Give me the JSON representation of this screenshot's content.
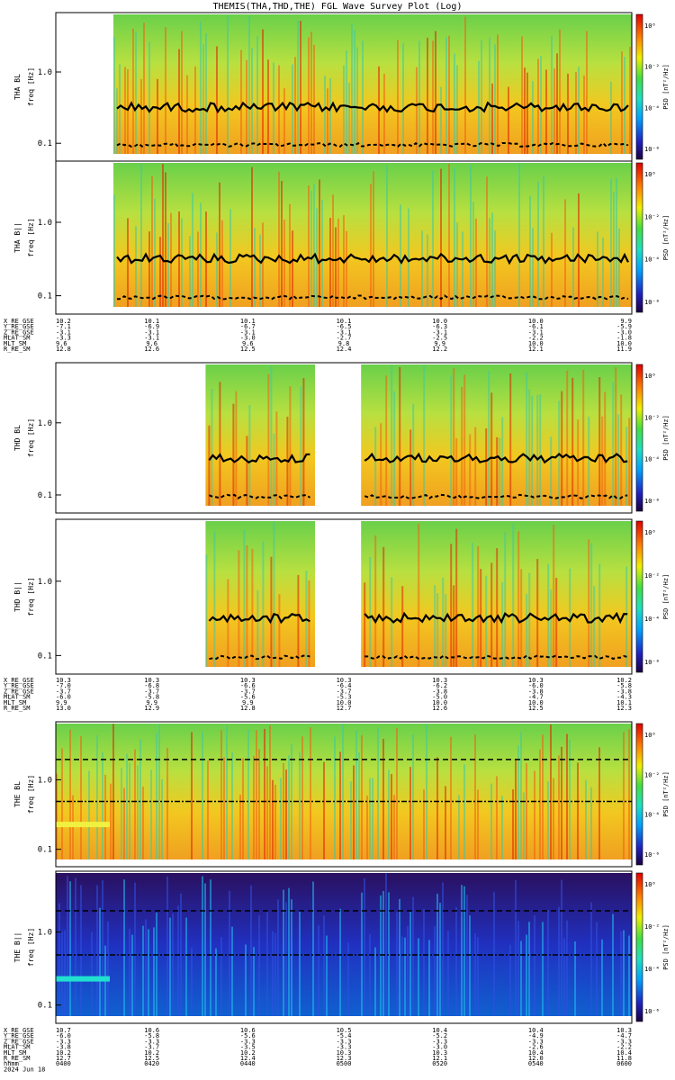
{
  "title": "THEMIS(THA,THD,THE) FGL Wave Survey Plot (Log)",
  "colorbar": {
    "label": "PSD [nT²/Hz]",
    "ticks": [
      "10⁰",
      "10⁻²",
      "10⁻⁴",
      "10⁻⁶"
    ]
  },
  "chart_data": [
    {
      "type": "heatmap",
      "probe": "THA",
      "panels": [
        {
          "component": "BL",
          "ylabel": "THA BL",
          "yunit": "freq [Hz]",
          "yticks": [
            "1.0",
            "0.1"
          ],
          "yscale": "log"
        },
        {
          "component": "Bll",
          "ylabel": "THA B||",
          "yunit": "freq [Hz]",
          "yticks": [
            "1.0",
            "0.1"
          ],
          "yscale": "log"
        }
      ],
      "data_coverage": [
        [
          0.1,
          1.0
        ]
      ],
      "ephemeris": {
        "rows": [
          {
            "label": "X_RE_GSE",
            "values": [
              "10.2",
              "10.1",
              "10.1",
              "10.1",
              "10.0",
              "10.0",
              "9.9"
            ]
          },
          {
            "label": "Y_RE_GSE",
            "values": [
              "-7.1",
              "-6.9",
              "-6.7",
              "-6.5",
              "-6.3",
              "-6.1",
              "-5.9"
            ]
          },
          {
            "label": "Z_RE_GSE",
            "values": [
              "-3.1",
              "-3.1",
              "-3.1",
              "-3.1",
              "-3.1",
              "-3.1",
              "-3.0"
            ]
          },
          {
            "label": "MLAT_SM",
            "values": [
              "-3.3",
              "-3.1",
              "-3.0",
              "-2.7",
              "-2.5",
              "-2.2",
              "-1.8"
            ]
          },
          {
            "label": "MLT_SM",
            "values": [
              "9.6",
              "9.6",
              "9.6",
              "9.8",
              "9.9",
              "10.0",
              "10.0"
            ]
          },
          {
            "label": "R_RE_SM",
            "values": [
              "12.8",
              "12.6",
              "12.5",
              "12.4",
              "12.2",
              "12.1",
              "11.9"
            ]
          }
        ]
      }
    },
    {
      "type": "heatmap",
      "probe": "THD",
      "panels": [
        {
          "component": "BL",
          "ylabel": "THD BL",
          "yunit": "freq [Hz]",
          "yticks": [
            "1.0",
            "0.1"
          ],
          "yscale": "log"
        },
        {
          "component": "Bll",
          "ylabel": "THD B||",
          "yunit": "freq [Hz]",
          "yticks": [
            "1.0",
            "0.1"
          ],
          "yscale": "log"
        }
      ],
      "data_coverage": [
        [
          0.26,
          0.45
        ],
        [
          0.53,
          1.0
        ]
      ],
      "ephemeris": {
        "rows": [
          {
            "label": "X_RE_GSE",
            "values": [
              "10.3",
              "10.3",
              "10.3",
              "10.3",
              "10.3",
              "10.3",
              "10.2"
            ]
          },
          {
            "label": "Y_RE_GSE",
            "values": [
              "-7.0",
              "-6.8",
              "-6.6",
              "-6.4",
              "-6.2",
              "-6.0",
              "-5.8"
            ]
          },
          {
            "label": "Z_RE_GSE",
            "values": [
              "-3.7",
              "-3.7",
              "-3.7",
              "-3.7",
              "-3.8",
              "-3.8",
              "-3.8"
            ]
          },
          {
            "label": "MLAT_SM",
            "values": [
              "-6.0",
              "-5.8",
              "-5.6",
              "-5.3",
              "-5.0",
              "-4.7",
              "-4.3"
            ]
          },
          {
            "label": "MLT_SM",
            "values": [
              "9.9",
              "9.9",
              "9.9",
              "10.0",
              "10.0",
              "10.0",
              "10.1"
            ]
          },
          {
            "label": "R_RE_SM",
            "values": [
              "13.0",
              "12.9",
              "12.8",
              "12.7",
              "12.6",
              "12.5",
              "12.3"
            ]
          }
        ]
      }
    },
    {
      "type": "heatmap",
      "probe": "THE",
      "panels": [
        {
          "component": "BL",
          "ylabel": "THE BL",
          "yunit": "freq [Hz]",
          "yticks": [
            "1.0",
            "0.1"
          ],
          "yscale": "log"
        },
        {
          "component": "Bll",
          "ylabel": "THE B||",
          "yunit": "freq [Hz]",
          "yticks": [
            "1.0",
            "0.1"
          ],
          "yscale": "log"
        }
      ],
      "data_coverage": [
        [
          0.0,
          1.0
        ]
      ],
      "ephemeris": {
        "rows": [
          {
            "label": "X_RE_GSE",
            "values": [
              "10.7",
              "10.6",
              "10.6",
              "10.5",
              "10.4",
              "10.4",
              "10.3"
            ]
          },
          {
            "label": "Y_RE_GSE",
            "values": [
              "-6.0",
              "-5.8",
              "-5.6",
              "-5.4",
              "-5.2",
              "-4.9",
              "-4.7"
            ]
          },
          {
            "label": "Z_RE_GSE",
            "values": [
              "-3.3",
              "-3.3",
              "-3.3",
              "-3.3",
              "-3.3",
              "-3.3",
              "-3.3"
            ]
          },
          {
            "label": "MLAT_SM",
            "values": [
              "-3.8",
              "-3.7",
              "-3.5",
              "-3.3",
              "-3.0",
              "-2.6",
              "-2.2"
            ]
          },
          {
            "label": "MLT_SM",
            "values": [
              "10.2",
              "10.2",
              "10.2",
              "10.3",
              "10.3",
              "10.4",
              "10.4"
            ]
          },
          {
            "label": "R_RE_SM",
            "values": [
              "12.7",
              "12.5",
              "12.4",
              "12.3",
              "12.1",
              "12.0",
              "11.8"
            ]
          },
          {
            "label": "hhmm",
            "values": [
              "0400",
              "0420",
              "0440",
              "0500",
              "0520",
              "0540",
              "0600"
            ]
          }
        ]
      },
      "date": "2024 Jun 18"
    }
  ]
}
